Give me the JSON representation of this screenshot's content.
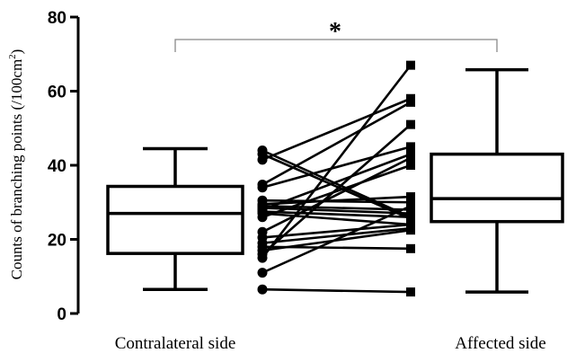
{
  "chart_data": {
    "type": "box",
    "title": "",
    "ylabel": "Counts of branching points (/100cm²)",
    "ylabel_parts": {
      "main": "Counts of branching points (/100cm",
      "superscript": "2",
      "end": ")"
    },
    "ylim": [
      0,
      80
    ],
    "yticks": [
      "0",
      "20",
      "40",
      "60",
      "80"
    ],
    "ytick_values": [
      0,
      20,
      40,
      60,
      80
    ],
    "categories": [
      "Contralateral side",
      "Affected side"
    ],
    "boxes": [
      {
        "name": "Contralateral side",
        "min": 6.5,
        "q1": 16.2,
        "median": 27,
        "q3": 34.3,
        "max": 44.5
      },
      {
        "name": "Affected side",
        "min": 5.8,
        "q1": 24.8,
        "median": 31,
        "q3": 43,
        "max": 65.8
      }
    ],
    "paired": [
      [
        44,
        26
      ],
      [
        43,
        25.5
      ],
      [
        41.5,
        58
      ],
      [
        34.8,
        57
      ],
      [
        34,
        45
      ],
      [
        30.5,
        30
      ],
      [
        29.5,
        31.5
      ],
      [
        29,
        28
      ],
      [
        28.5,
        27
      ],
      [
        28,
        43
      ],
      [
        27.5,
        26
      ],
      [
        27,
        24
      ],
      [
        26,
        40
      ],
      [
        22,
        42
      ],
      [
        20.5,
        24
      ],
      [
        19,
        23
      ],
      [
        18,
        17.5
      ],
      [
        17,
        22.5
      ],
      [
        16,
        51
      ],
      [
        15,
        67
      ],
      [
        11,
        29
      ],
      [
        6.5,
        5.8
      ]
    ],
    "significance": {
      "label": "*",
      "between": [
        "Contralateral side",
        "Affected side"
      ]
    }
  }
}
